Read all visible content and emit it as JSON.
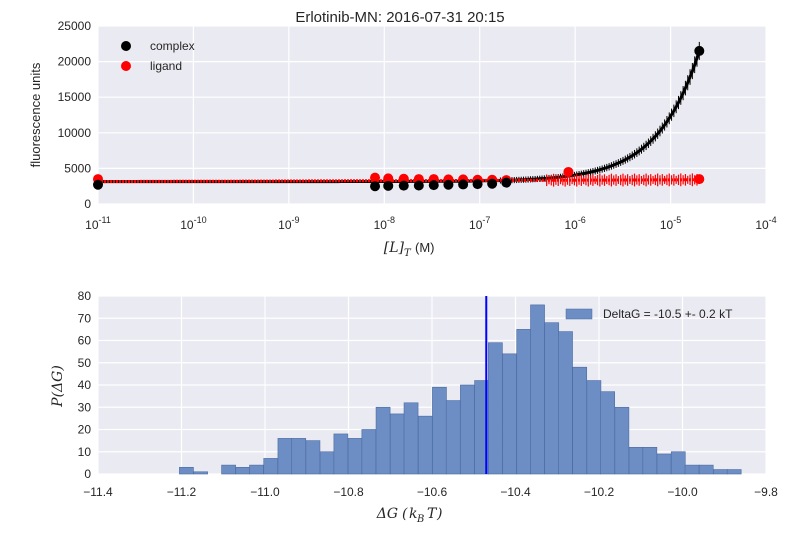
{
  "colors": {
    "axes_bg": "#eaeaf2",
    "grid": "#ffffff",
    "complex": "#000000",
    "ligand": "#ff0000",
    "hist_fill": "#6d8ec4",
    "hist_edge": "#4a6aa0",
    "vline": "#0000ff"
  },
  "chart_data": [
    {
      "type": "scatter",
      "title": "Erlotinib-MN: 2016-07-31 20:15",
      "xlabel_math": "[L]",
      "xlabel_sub": "T",
      "xlabel_unit": "(M)",
      "ylabel": "fluorescence units",
      "xscale": "log",
      "xlim": [
        1e-11,
        0.0001
      ],
      "ylim": [
        0,
        25000
      ],
      "xticks": [
        {
          "base": "10",
          "exp": "-11"
        },
        {
          "base": "10",
          "exp": "-10"
        },
        {
          "base": "10",
          "exp": "-9"
        },
        {
          "base": "10",
          "exp": "-8"
        },
        {
          "base": "10",
          "exp": "-7"
        },
        {
          "base": "10",
          "exp": "-6"
        },
        {
          "base": "10",
          "exp": "-5"
        },
        {
          "base": "10",
          "exp": "-4"
        }
      ],
      "yticks": [
        "0",
        "5000",
        "10000",
        "15000",
        "20000",
        "25000"
      ],
      "grid": true,
      "legend_position": "top-left",
      "series": [
        {
          "name": "complex",
          "model_curve": {
            "x_range": [
              1e-11,
              2e-05
            ],
            "y_baseline": 3150,
            "y_end": 21500
          },
          "points": [
            {
              "x": 1e-11,
              "y": 2700
            },
            {
              "x": 8e-09,
              "y": 2500
            },
            {
              "x": 1.1e-08,
              "y": 2550
            },
            {
              "x": 1.6e-08,
              "y": 2580
            },
            {
              "x": 2.3e-08,
              "y": 2600
            },
            {
              "x": 3.3e-08,
              "y": 2650
            },
            {
              "x": 4.7e-08,
              "y": 2700
            },
            {
              "x": 6.7e-08,
              "y": 2750
            },
            {
              "x": 9.5e-08,
              "y": 2800
            },
            {
              "x": 1.35e-07,
              "y": 2850
            },
            {
              "x": 1.9e-07,
              "y": 3000
            },
            {
              "x": 2e-05,
              "y": 21500
            }
          ]
        },
        {
          "name": "ligand",
          "model_curve": {
            "x_range": [
              1e-11,
              2e-05
            ],
            "y_baseline": 3150,
            "y_end": 3400
          },
          "points": [
            {
              "x": 1e-11,
              "y": 3500
            },
            {
              "x": 8e-09,
              "y": 3700
            },
            {
              "x": 1.1e-08,
              "y": 3600
            },
            {
              "x": 1.6e-08,
              "y": 3550
            },
            {
              "x": 2.3e-08,
              "y": 3500
            },
            {
              "x": 3.3e-08,
              "y": 3500
            },
            {
              "x": 4.7e-08,
              "y": 3450
            },
            {
              "x": 6.7e-08,
              "y": 3450
            },
            {
              "x": 9.5e-08,
              "y": 3400
            },
            {
              "x": 1.35e-07,
              "y": 3400
            },
            {
              "x": 1.9e-07,
              "y": 3350
            },
            {
              "x": 8.5e-07,
              "y": 4500
            },
            {
              "x": 2e-05,
              "y": 3500
            }
          ]
        }
      ]
    },
    {
      "type": "bar",
      "xlabel_math": "ΔG",
      "xlabel_unit_math": "k",
      "xlabel_unit_sub": "B",
      "xlabel_unit_tail": "T",
      "ylabel_math": "P(ΔG)",
      "xlim": [
        -11.4,
        -9.8
      ],
      "ylim": [
        0,
        80
      ],
      "xticks": [
        "−11.4",
        "−11.2",
        "−11.0",
        "−10.8",
        "−10.6",
        "−10.4",
        "−10.2",
        "−10.0",
        "−9.8"
      ],
      "xtick_values": [
        -11.4,
        -11.2,
        -11.0,
        -10.8,
        -10.6,
        -10.4,
        -10.2,
        -10.0,
        -9.8
      ],
      "yticks": [
        "0",
        "10",
        "20",
        "30",
        "40",
        "50",
        "60",
        "70",
        "80"
      ],
      "grid": true,
      "legend_position": "top-right",
      "legend_label": "DeltaG = -10.5 +- 0.2 kT",
      "vline_x": -10.47,
      "bin_width": 0.0336,
      "bins": [
        {
          "x0": -11.205,
          "count": 3
        },
        {
          "x0": -11.171,
          "count": 1
        },
        {
          "x0": -11.104,
          "count": 4
        },
        {
          "x0": -11.07,
          "count": 3
        },
        {
          "x0": -11.037,
          "count": 4
        },
        {
          "x0": -11.003,
          "count": 7
        },
        {
          "x0": -10.969,
          "count": 16
        },
        {
          "x0": -10.936,
          "count": 16
        },
        {
          "x0": -10.902,
          "count": 15
        },
        {
          "x0": -10.868,
          "count": 10
        },
        {
          "x0": -10.835,
          "count": 18
        },
        {
          "x0": -10.801,
          "count": 16
        },
        {
          "x0": -10.768,
          "count": 20
        },
        {
          "x0": -10.734,
          "count": 30
        },
        {
          "x0": -10.7,
          "count": 27
        },
        {
          "x0": -10.667,
          "count": 32
        },
        {
          "x0": -10.633,
          "count": 26
        },
        {
          "x0": -10.599,
          "count": 39
        },
        {
          "x0": -10.566,
          "count": 33
        },
        {
          "x0": -10.532,
          "count": 40
        },
        {
          "x0": -10.498,
          "count": 42
        },
        {
          "x0": -10.465,
          "count": 59
        },
        {
          "x0": -10.431,
          "count": 54
        },
        {
          "x0": -10.397,
          "count": 65
        },
        {
          "x0": -10.364,
          "count": 76
        },
        {
          "x0": -10.33,
          "count": 68
        },
        {
          "x0": -10.297,
          "count": 64
        },
        {
          "x0": -10.263,
          "count": 48
        },
        {
          "x0": -10.229,
          "count": 42
        },
        {
          "x0": -10.196,
          "count": 37
        },
        {
          "x0": -10.162,
          "count": 30
        },
        {
          "x0": -10.128,
          "count": 12
        },
        {
          "x0": -10.095,
          "count": 12
        },
        {
          "x0": -10.061,
          "count": 9
        },
        {
          "x0": -10.027,
          "count": 10
        },
        {
          "x0": -9.994,
          "count": 4
        },
        {
          "x0": -9.96,
          "count": 4
        },
        {
          "x0": -9.926,
          "count": 2
        },
        {
          "x0": -9.893,
          "count": 2
        }
      ]
    }
  ]
}
